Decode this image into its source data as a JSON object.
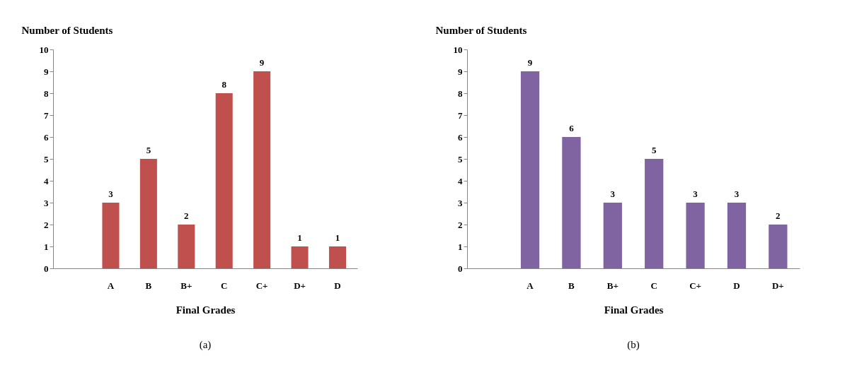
{
  "chart_data": [
    {
      "type": "bar",
      "categories": [
        null,
        "A",
        "B",
        "B+",
        "C",
        "C+",
        "D+",
        "D"
      ],
      "values": [
        null,
        3,
        5,
        2,
        8,
        9,
        1,
        1
      ],
      "color": "#c0504d",
      "xlabel": "Final Grades",
      "ylabel": "Number of Students",
      "ylim": [
        0,
        10
      ],
      "yticks": [
        0,
        1,
        2,
        3,
        4,
        5,
        6,
        7,
        8,
        9,
        10
      ],
      "data_labels": true,
      "annotations": [
        "(a)"
      ]
    },
    {
      "type": "bar",
      "categories": [
        null,
        "A",
        "B",
        "B+",
        "C",
        "C+",
        "D",
        "D+"
      ],
      "values": [
        null,
        9,
        6,
        3,
        5,
        3,
        3,
        2
      ],
      "color": "#8064a2",
      "xlabel": "Final Grades",
      "ylabel": "Number of Students",
      "ylim": [
        0,
        10
      ],
      "yticks": [
        0,
        1,
        2,
        3,
        4,
        5,
        6,
        7,
        8,
        9,
        10
      ],
      "data_labels": true,
      "annotations": [
        "(b)"
      ]
    }
  ]
}
